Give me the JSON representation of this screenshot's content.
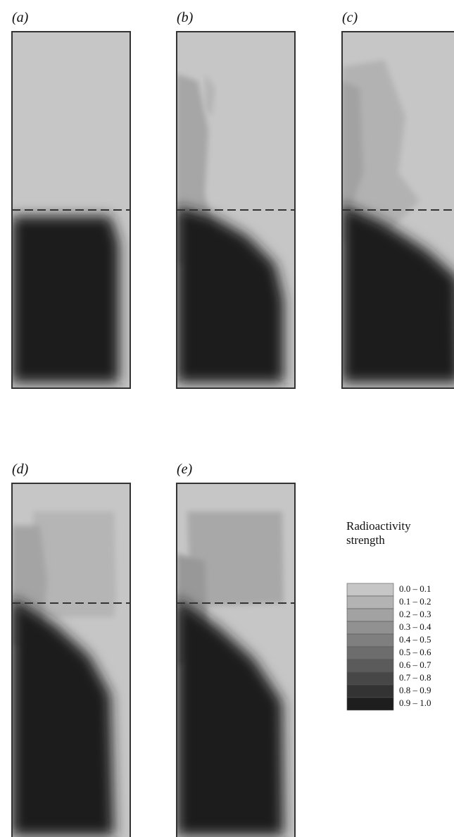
{
  "panels": [
    {
      "label": "(a)"
    },
    {
      "label": "(b)"
    },
    {
      "label": "(c)"
    },
    {
      "label": "(d)"
    },
    {
      "label": "(e)"
    }
  ],
  "legend": {
    "title": "Radioactivity strength",
    "items": [
      {
        "label": "0.0 – 0.1",
        "color": "#c6c6c6"
      },
      {
        "label": "0.1 – 0.2",
        "color": "#b3b3b3"
      },
      {
        "label": "0.2 – 0.3",
        "color": "#a2a2a2"
      },
      {
        "label": "0.3 – 0.4",
        "color": "#919191"
      },
      {
        "label": "0.4 – 0.5",
        "color": "#7f7f7f"
      },
      {
        "label": "0.5 – 0.6",
        "color": "#6d6d6d"
      },
      {
        "label": "0.6 – 0.7",
        "color": "#5b5b5b"
      },
      {
        "label": "0.7 – 0.8",
        "color": "#474747"
      },
      {
        "label": "0.8 – 0.9",
        "color": "#333333"
      },
      {
        "label": "0.9 – 1.0",
        "color": "#1e1e1e"
      }
    ]
  }
}
